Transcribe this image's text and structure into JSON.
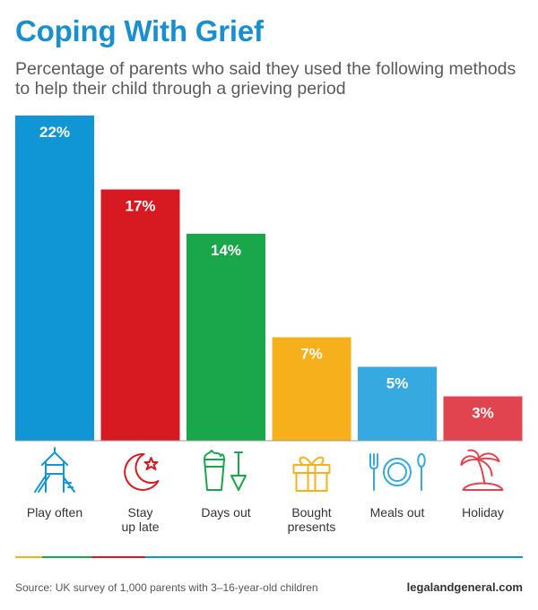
{
  "header": {
    "title": "Coping With Grief",
    "subtitle": "Percentage of parents who said they used the following methods to help their child through a grieving period"
  },
  "chart_data": {
    "type": "bar",
    "categories": [
      "Play often",
      "Stay up late",
      "Days out",
      "Bought presents",
      "Meals out",
      "Holiday"
    ],
    "category_lines": [
      [
        "Play often"
      ],
      [
        "Stay",
        "up late"
      ],
      [
        "Days out"
      ],
      [
        "Bought",
        "presents"
      ],
      [
        "Meals out"
      ],
      [
        "Holiday"
      ]
    ],
    "values": [
      22,
      17,
      14,
      7,
      5,
      3
    ],
    "value_labels": [
      "22%",
      "17%",
      "14%",
      "7%",
      "5%",
      "3%"
    ],
    "unit": "%",
    "ylim": [
      0,
      22
    ],
    "colors": [
      "#1096d4",
      "#d71921",
      "#1aa64a",
      "#f6b01b",
      "#36a9e1",
      "#e2444f"
    ],
    "icons": [
      "playground-slide-icon",
      "moon-star-icon",
      "sandcastle-bucket-icon",
      "gift-box-icon",
      "plate-cutlery-icon",
      "palm-island-icon"
    ],
    "grid": false,
    "legend": "none"
  },
  "footer": {
    "source": "Source: UK survey of 1,000 parents with 3–16-year-old children",
    "site": "legalandgeneral.com",
    "stripe_colors": [
      "#f6b01b",
      "#1aa64a",
      "#d71921",
      "#1096d4"
    ]
  }
}
